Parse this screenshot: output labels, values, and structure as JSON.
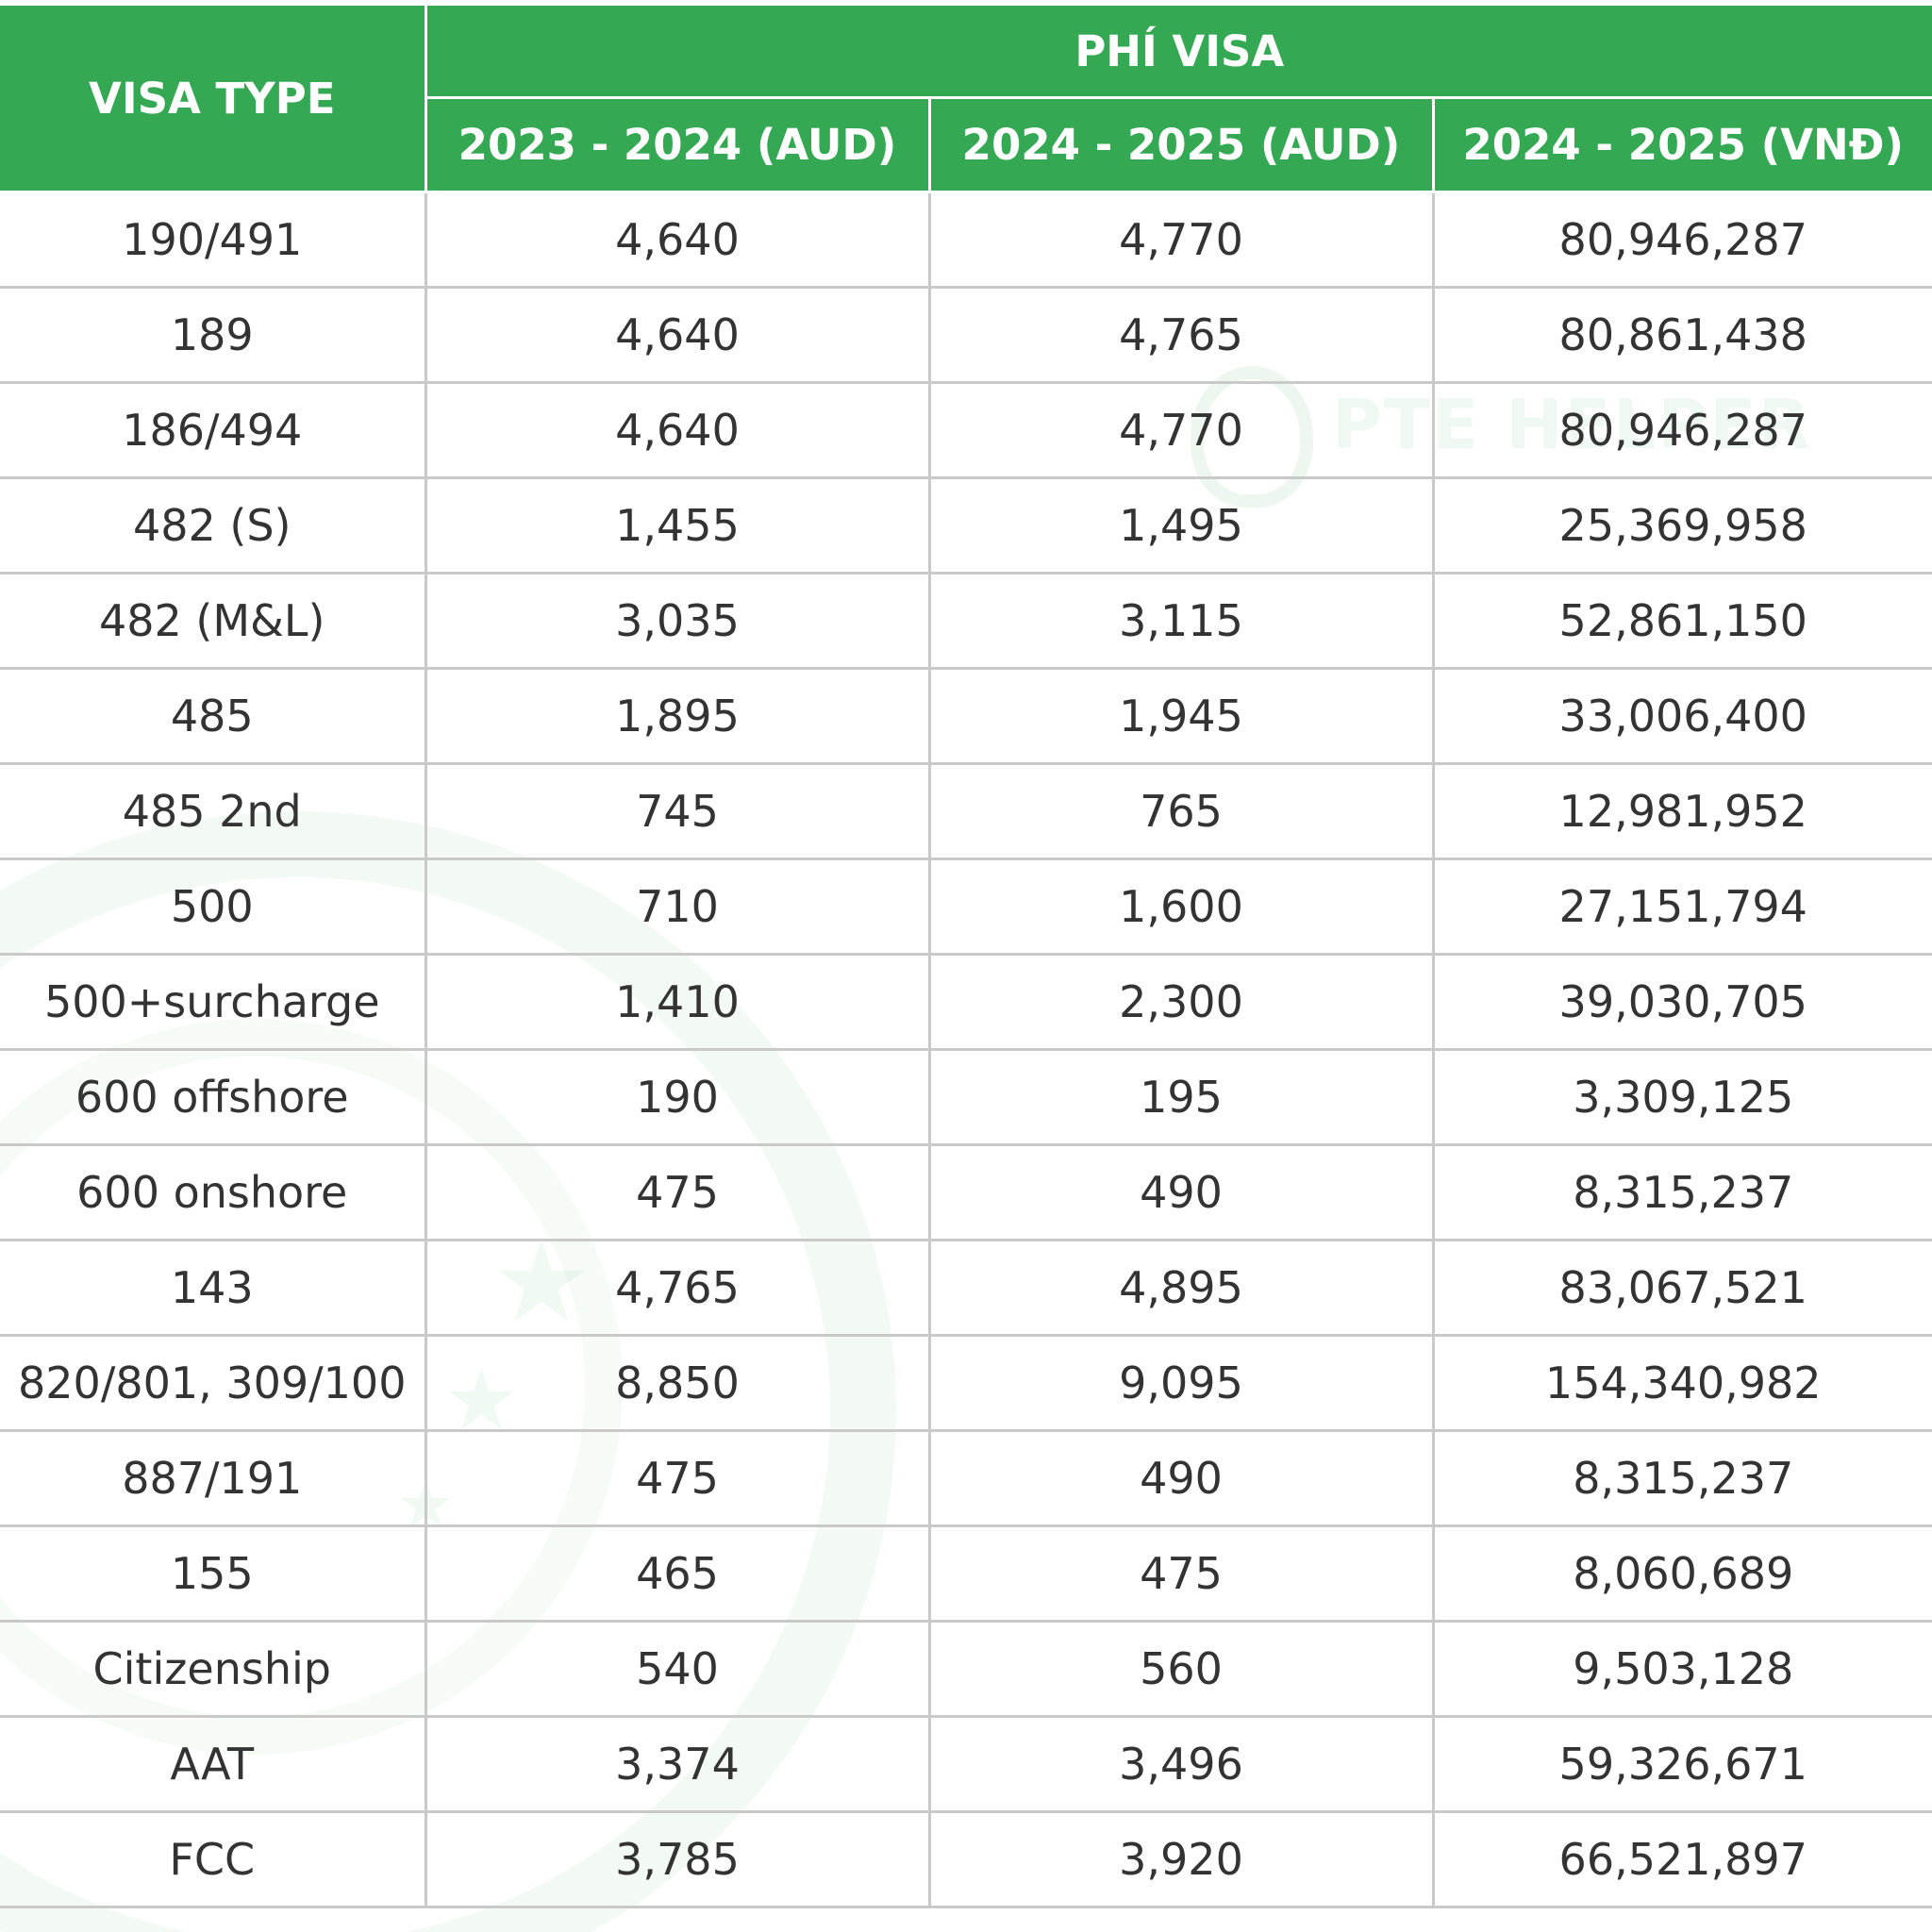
{
  "table": {
    "header": {
      "visa_type": "VISA TYPE",
      "group": "PHÍ VISA",
      "col_2023_2024_aud": "2023 - 2024 (AUD)",
      "col_2024_2025_aud": "2024 - 2025 (AUD)",
      "col_2024_2025_vnd": "2024 - 2025 (VNĐ)"
    },
    "rows": [
      [
        "190/491",
        "4,640",
        "4,770",
        "80,946,287"
      ],
      [
        "189",
        "4,640",
        "4,765",
        "80,861,438"
      ],
      [
        "186/494",
        "4,640",
        "4,770",
        "80,946,287"
      ],
      [
        "482 (S)",
        "1,455",
        "1,495",
        "25,369,958"
      ],
      [
        "482 (M&L)",
        "3,035",
        "3,115",
        "52,861,150"
      ],
      [
        "485",
        "1,895",
        "1,945",
        "33,006,400"
      ],
      [
        "485 2nd",
        "745",
        "765",
        "12,981,952"
      ],
      [
        "500",
        "710",
        "1,600",
        "27,151,794"
      ],
      [
        "500+surcharge",
        "1,410",
        "2,300",
        "39,030,705"
      ],
      [
        "600 offshore",
        "190",
        "195",
        "3,309,125"
      ],
      [
        "600 onshore",
        "475",
        "490",
        "8,315,237"
      ],
      [
        "143",
        "4,765",
        "4,895",
        "83,067,521"
      ],
      [
        "820/801, 309/100",
        "8,850",
        "9,095",
        "154,340,982"
      ],
      [
        "887/191",
        "475",
        "490",
        "8,315,237"
      ],
      [
        "155",
        "465",
        "475",
        "8,060,689"
      ],
      [
        "Citizenship",
        "540",
        "560",
        "9,503,128"
      ],
      [
        "AAT",
        "3,374",
        "3,496",
        "59,326,671"
      ],
      [
        "FCC",
        "3,785",
        "3,920",
        "66,521,897"
      ]
    ]
  },
  "watermark": {
    "text": "PTE HELPER"
  },
  "colors": {
    "header_green": "#34a853",
    "grid_gray": "#c9c9c9",
    "cell_text": "#333333"
  }
}
